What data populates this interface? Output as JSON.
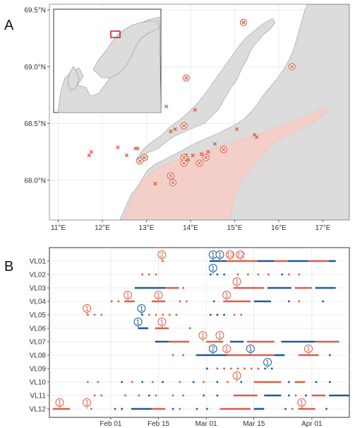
{
  "figure": {
    "panel_labels": [
      "A",
      "B"
    ]
  },
  "colors": {
    "red": "#d95f49",
    "blue": "#1f5a9a",
    "land": "#dcdcdc",
    "sea": "#ffffff",
    "fjord": "#f3cfc8",
    "grid": "#e6e6e6"
  },
  "chart_data": [
    {
      "type": "scatter",
      "panel": "A",
      "xlabel": "",
      "ylabel": "",
      "x_ticks": [
        "11°E",
        "12°E",
        "13°E",
        "14°E",
        "15°E",
        "16°E",
        "17°E"
      ],
      "y_ticks": [
        "68.0°N",
        "68.5°N",
        "69.0°N",
        "69.5°N"
      ],
      "xlim": [
        10.8,
        17.6
      ],
      "ylim": [
        67.65,
        69.55
      ],
      "series": [
        {
          "marker": "cross",
          "points": [
            [
              11.7,
              68.22
            ],
            [
              11.75,
              68.25
            ],
            [
              12.35,
              68.29
            ],
            [
              12.75,
              68.28
            ],
            [
              12.8,
              68.28
            ],
            [
              12.55,
              68.22
            ],
            [
              12.85,
              68.17
            ],
            [
              13.2,
              67.97
            ],
            [
              13.55,
              68.43
            ],
            [
              13.65,
              68.45
            ],
            [
              13.9,
              68.22
            ],
            [
              13.95,
              68.18
            ],
            [
              14.05,
              68.22
            ],
            [
              14.25,
              68.23
            ],
            [
              14.55,
              68.32
            ],
            [
              14.75,
              68.27
            ],
            [
              15.05,
              68.45
            ],
            [
              15.45,
              68.4
            ],
            [
              15.5,
              68.38
            ],
            [
              14.1,
              68.62
            ],
            [
              13.45,
              68.65
            ],
            [
              13.0,
              68.2
            ],
            [
              14.4,
              68.25
            ]
          ]
        },
        {
          "marker": "circle-cross",
          "points": [
            [
              15.2,
              69.39
            ],
            [
              16.3,
              69.0
            ],
            [
              13.9,
              68.9
            ],
            [
              13.85,
              68.48
            ],
            [
              12.95,
              68.2
            ],
            [
              12.85,
              68.17
            ],
            [
              13.85,
              68.2
            ],
            [
              13.85,
              68.15
            ],
            [
              14.35,
              68.2
            ],
            [
              14.75,
              68.27
            ],
            [
              14.2,
              68.15
            ],
            [
              13.55,
              68.04
            ],
            [
              13.6,
              67.98
            ]
          ]
        }
      ]
    },
    {
      "type": "timeline",
      "panel": "B",
      "x_ticks": [
        "Feb 01",
        "Feb 15",
        "Mar 01",
        "Mar 15",
        "Apr 01"
      ],
      "tick_days": [
        10,
        24,
        38,
        52,
        69
      ],
      "xlim": [
        -8,
        80
      ],
      "categories": [
        "VL01",
        "VL02",
        "VL03",
        "VL04",
        "VL05",
        "VL06",
        "VL07",
        "VL08",
        "VL09",
        "VL10",
        "VL11",
        "VL12"
      ],
      "rows": [
        {
          "label": "VL01",
          "segments": [
            [
              39,
              44,
              "blue"
            ],
            [
              44,
              53,
              "red"
            ],
            [
              53,
              58,
              "blue"
            ],
            [
              58,
              62,
              "red"
            ],
            [
              62,
              68,
              "blue"
            ],
            [
              68,
              74,
              "red"
            ],
            [
              74,
              76,
              "blue"
            ]
          ],
          "dots": [
            [
              25,
              "red"
            ],
            [
              42,
              "red"
            ]
          ],
          "badges": [
            [
              25,
              "2",
              "red"
            ],
            [
              40,
              "1",
              "blue"
            ],
            [
              42,
              "1",
              "blue"
            ],
            [
              45,
              "13",
              "red"
            ],
            [
              48,
              "22",
              "red"
            ]
          ]
        },
        {
          "label": "VL02",
          "segments": [],
          "dots": [
            [
              19,
              "red"
            ],
            [
              21,
              "red"
            ],
            [
              23,
              "red"
            ],
            [
              39,
              "blue"
            ],
            [
              41,
              "blue"
            ],
            [
              43,
              "blue"
            ],
            [
              47,
              "red"
            ],
            [
              50,
              "red"
            ],
            [
              53,
              "red"
            ],
            [
              56,
              "red"
            ],
            [
              60,
              "blue"
            ],
            [
              62,
              "red"
            ],
            [
              65,
              "red"
            ]
          ],
          "badges": [
            [
              40,
              "1",
              "blue"
            ]
          ]
        },
        {
          "label": "VL03",
          "segments": [
            [
              17,
              26,
              "blue"
            ],
            [
              26,
              30,
              "red"
            ],
            [
              46,
              55,
              "red"
            ],
            [
              56,
              63,
              "blue"
            ],
            [
              64,
              69,
              "red"
            ],
            [
              70,
              76,
              "blue"
            ]
          ],
          "dots": [
            [
              31,
              "red"
            ]
          ],
          "badges": [
            [
              47,
              "1",
              "red"
            ]
          ]
        },
        {
          "label": "VL04",
          "segments": [
            [
              14,
              17,
              "red"
            ],
            [
              22,
              26,
              "red"
            ],
            [
              43,
              51,
              "red"
            ],
            [
              52,
              57,
              "blue"
            ]
          ],
          "dots": [
            [
              10,
              "red"
            ],
            [
              12,
              "red"
            ],
            [
              30,
              "red"
            ],
            [
              32,
              "red"
            ],
            [
              40,
              "blue"
            ],
            [
              62,
              "blue"
            ],
            [
              65,
              "red"
            ],
            [
              72,
              "blue"
            ]
          ],
          "badges": [
            [
              15,
              "1",
              "red"
            ],
            [
              24,
              "1",
              "red"
            ],
            [
              44,
              "1",
              "red"
            ]
          ]
        },
        {
          "label": "VL05",
          "segments": [],
          "dots": [
            [
              3,
              "red"
            ],
            [
              5,
              "red"
            ],
            [
              7,
              "red"
            ],
            [
              19,
              "blue"
            ],
            [
              21,
              "red"
            ],
            [
              23,
              "red"
            ],
            [
              25,
              "red"
            ],
            [
              27,
              "red"
            ],
            [
              29,
              "red"
            ],
            [
              39,
              "blue"
            ],
            [
              41,
              "blue"
            ],
            [
              43,
              "blue"
            ],
            [
              46,
              "red"
            ],
            [
              48,
              "red"
            ]
          ],
          "badges": [
            [
              3,
              "1",
              "red"
            ],
            [
              19,
              "1",
              "blue"
            ]
          ]
        },
        {
          "label": "VL06",
          "segments": [
            [
              18,
              21,
              "blue"
            ],
            [
              23,
              27,
              "red"
            ]
          ],
          "dots": [
            [
              33,
              "red"
            ]
          ],
          "badges": [
            [
              18,
              "1",
              "blue"
            ],
            [
              25,
              "1",
              "red"
            ]
          ]
        },
        {
          "label": "VL07",
          "segments": [
            [
              23,
              27,
              "blue"
            ],
            [
              27,
              33,
              "red"
            ],
            [
              38,
              43,
              "red"
            ],
            [
              45,
              49,
              "blue"
            ],
            [
              50,
              58,
              "red"
            ],
            [
              60,
              70,
              "blue"
            ],
            [
              70,
              77,
              "red"
            ]
          ],
          "dots": [],
          "badges": [
            [
              37,
              "1",
              "red"
            ],
            [
              42,
              "1",
              "red"
            ]
          ]
        },
        {
          "label": "VL08",
          "segments": [
            [
              35,
              44,
              "blue"
            ],
            [
              44,
              58,
              "red"
            ],
            [
              58,
              61,
              "blue"
            ],
            [
              65,
              71,
              "red"
            ]
          ],
          "dots": [
            [
              28,
              "red"
            ],
            [
              31,
              "red"
            ],
            [
              74,
              "blue"
            ]
          ],
          "badges": [
            [
              40,
              "2",
              "blue"
            ],
            [
              44,
              "1",
              "red"
            ],
            [
              51,
              "1",
              "blue"
            ],
            [
              68,
              "1",
              "red"
            ]
          ]
        },
        {
          "label": "VL09",
          "segments": [],
          "dots": [
            [
              38,
              "blue"
            ],
            [
              41,
              "red"
            ],
            [
              43,
              "red"
            ],
            [
              45,
              "red"
            ],
            [
              47,
              "red"
            ],
            [
              49,
              "red"
            ],
            [
              51,
              "red"
            ],
            [
              53,
              "red"
            ],
            [
              55,
              "blue"
            ],
            [
              57,
              "blue"
            ]
          ],
          "badges": [
            [
              56,
              "1",
              "blue"
            ]
          ]
        },
        {
          "label": "VL10",
          "segments": [
            [
              52,
              60,
              "red"
            ],
            [
              64,
              67,
              "red"
            ]
          ],
          "dots": [
            [
              3,
              "red"
            ],
            [
              6,
              "red"
            ],
            [
              13,
              "blue"
            ],
            [
              16,
              "red"
            ],
            [
              19,
              "blue"
            ],
            [
              22,
              "red"
            ],
            [
              25,
              "blue"
            ],
            [
              30,
              "red"
            ],
            [
              34,
              "blue"
            ],
            [
              37,
              "red"
            ],
            [
              41,
              "blue"
            ],
            [
              44,
              "red"
            ],
            [
              48,
              "blue"
            ],
            [
              62,
              "blue"
            ],
            [
              70,
              "blue"
            ],
            [
              74,
              "blue"
            ]
          ],
          "badges": [
            [
              47,
              "1",
              "red"
            ]
          ]
        },
        {
          "label": "VL11",
          "segments": [
            [
              46,
              53,
              "red"
            ],
            [
              55,
              60,
              "blue"
            ],
            [
              69,
              73,
              "red"
            ],
            [
              74,
              80,
              "blue"
            ]
          ],
          "dots": [
            [
              5,
              "red"
            ],
            [
              7,
              "red"
            ],
            [
              14,
              "red"
            ],
            [
              18,
              "red"
            ],
            [
              21,
              "blue"
            ],
            [
              23,
              "red"
            ],
            [
              28,
              "red"
            ],
            [
              31,
              "red"
            ],
            [
              37,
              "blue"
            ],
            [
              41,
              "blue"
            ],
            [
              62,
              "blue"
            ],
            [
              64,
              "red"
            ],
            [
              67,
              "blue"
            ]
          ],
          "badges": []
        },
        {
          "label": "VL12",
          "segments": [
            [
              -7,
              -2,
              "red"
            ],
            [
              16,
              22,
              "blue"
            ],
            [
              22,
              26,
              "red"
            ],
            [
              42,
              51,
              "red"
            ],
            [
              52,
              55,
              "blue"
            ],
            [
              65,
              70,
              "red"
            ]
          ],
          "dots": [
            [
              4,
              "red"
            ],
            [
              11,
              "blue"
            ],
            [
              13,
              "blue"
            ],
            [
              28,
              "blue"
            ],
            [
              30,
              "red"
            ],
            [
              35,
              "blue"
            ],
            [
              38,
              "blue"
            ],
            [
              61,
              "blue"
            ],
            [
              63,
              "red"
            ],
            [
              73,
              "blue"
            ]
          ],
          "badges": [
            [
              -5,
              "1",
              "red"
            ],
            [
              3,
              "1",
              "red"
            ],
            [
              66,
              "1",
              "red"
            ]
          ]
        }
      ]
    }
  ]
}
